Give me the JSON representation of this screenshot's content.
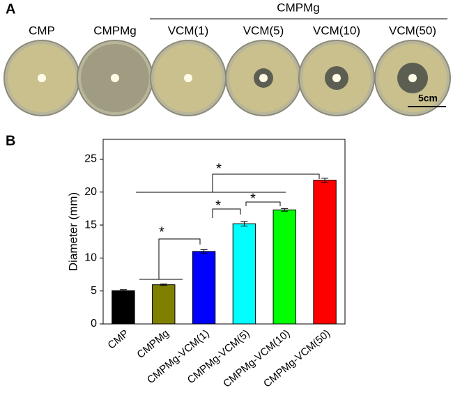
{
  "panel_a": {
    "label": "A",
    "group_label": "CMPMg",
    "plates": [
      "CMP",
      "CMPMg",
      "VCM(1)",
      "VCM(5)",
      "VCM(10)",
      "VCM(50)"
    ],
    "scale_bar": "5cm"
  },
  "panel_b_label": "B",
  "chart_data": {
    "type": "bar",
    "y_label": "Diameter (mm)",
    "categories": [
      "CMP",
      "CMPMg",
      "CMPMg-VCM(1)",
      "CMPMg-VCM(5)",
      "CMPMg-VCM(10)",
      "CMPMg-VCM(50)"
    ],
    "values": [
      5.05,
      5.95,
      11.0,
      15.2,
      17.3,
      21.8
    ],
    "errors": [
      0.15,
      0.1,
      0.25,
      0.35,
      0.2,
      0.3
    ],
    "colors": [
      "#000000",
      "#808000",
      "#0000ff",
      "#00ffff",
      "#00ff00",
      "#ff0000"
    ],
    "ylim": [
      0,
      28
    ],
    "yticks": [
      0,
      5,
      10,
      15,
      20,
      25
    ],
    "annotations": [
      "*",
      "*",
      "*",
      "*"
    ]
  }
}
